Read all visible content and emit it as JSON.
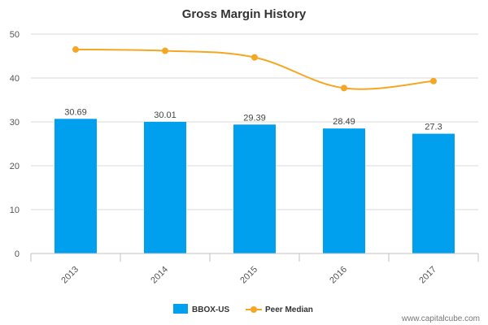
{
  "chart_data": {
    "type": "bar",
    "title": "Gross Margin History",
    "categories": [
      "2013",
      "2014",
      "2015",
      "2016",
      "2017"
    ],
    "series": [
      {
        "name": "BBOX-US",
        "kind": "bar",
        "values": [
          30.69,
          30.01,
          29.39,
          28.49,
          27.3
        ],
        "data_labels": [
          "30.69",
          "30.01",
          "29.39",
          "28.49",
          "27.3"
        ]
      },
      {
        "name": "Peer Median",
        "kind": "line",
        "values": [
          46.5,
          46.2,
          44.7,
          37.7,
          39.3
        ]
      }
    ],
    "ylim": [
      0,
      50
    ],
    "yticks": [
      0,
      10,
      20,
      30,
      40,
      50
    ],
    "xlabel": "",
    "ylabel": "",
    "grid": true,
    "legend_position": "bottom",
    "colors": {
      "bar": "#00a0ef",
      "line": "#f5a623",
      "grid": "#d9d9d9",
      "axis": "#c0c0c0"
    }
  },
  "credit": "www.capitalcube.com"
}
